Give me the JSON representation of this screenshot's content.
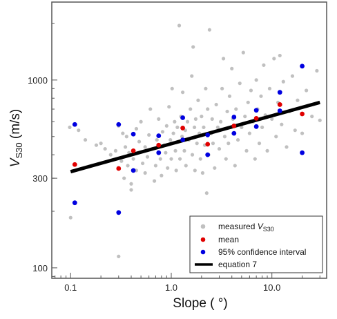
{
  "chart_data": {
    "type": "scatter",
    "xlabel": "Slope ( °)",
    "ylabel": "V",
    "ylabel_subscript": "S30",
    "ylabel_unit": " (m/s)",
    "x_scale": "log",
    "y_scale": "log",
    "xlim": [
      0.065,
      35
    ],
    "ylim": [
      88,
      2600
    ],
    "x_ticks": [
      0.1,
      1.0,
      10.0
    ],
    "x_tick_labels": [
      "0.1",
      "1.0",
      "10.0"
    ],
    "y_ticks": [
      100,
      300,
      1000
    ],
    "y_tick_labels": [
      "100",
      "300",
      "1000"
    ],
    "grid": false,
    "legend_position": "bottom-right",
    "legend": [
      {
        "label": "measured ",
        "label_italic": "V",
        "label_subscript": "S30",
        "marker": "dot",
        "color": "#c0c0c0"
      },
      {
        "label": "mean",
        "marker": "dot",
        "color": "#e00000"
      },
      {
        "label": "95% confidence interval",
        "marker": "dot",
        "color": "#0000e0"
      },
      {
        "label": "equation 7",
        "marker": "line",
        "color": "#000000"
      }
    ],
    "colors": {
      "measured": "#c0c0c0",
      "mean": "#e00000",
      "ci": "#0000e0",
      "equation": "#000000"
    },
    "series": [
      {
        "name": "mean",
        "points": [
          [
            0.11,
            355
          ],
          [
            0.3,
            338
          ],
          [
            0.42,
            420
          ],
          [
            0.75,
            450
          ],
          [
            1.3,
            555
          ],
          [
            2.3,
            455
          ],
          [
            4.2,
            570
          ],
          [
            7.0,
            625
          ],
          [
            12,
            740
          ],
          [
            20,
            660
          ]
        ]
      },
      {
        "name": "95% confidence interval",
        "points": [
          [
            0.11,
            580
          ],
          [
            0.11,
            222
          ],
          [
            0.3,
            580
          ],
          [
            0.3,
            197
          ],
          [
            0.42,
            515
          ],
          [
            0.42,
            330
          ],
          [
            0.75,
            505
          ],
          [
            0.75,
            410
          ],
          [
            1.3,
            630
          ],
          [
            1.3,
            480
          ],
          [
            2.3,
            510
          ],
          [
            2.3,
            400
          ],
          [
            4.2,
            635
          ],
          [
            4.2,
            520
          ],
          [
            7.0,
            690
          ],
          [
            7.0,
            565
          ],
          [
            12,
            860
          ],
          [
            12,
            685
          ],
          [
            20,
            1185
          ],
          [
            20,
            410
          ]
        ]
      },
      {
        "name": "equation 7",
        "line": [
          [
            0.1,
            325
          ],
          [
            30,
            760
          ]
        ]
      },
      {
        "name": "measured",
        "points": [
          [
            0.098,
            560
          ],
          [
            0.1,
            185
          ],
          [
            0.12,
            540
          ],
          [
            0.14,
            480
          ],
          [
            0.18,
            450
          ],
          [
            0.2,
            460
          ],
          [
            0.22,
            430
          ],
          [
            0.25,
            400
          ],
          [
            0.28,
            420
          ],
          [
            0.3,
            570
          ],
          [
            0.3,
            115
          ],
          [
            0.32,
            370
          ],
          [
            0.33,
            520
          ],
          [
            0.34,
            300
          ],
          [
            0.35,
            440
          ],
          [
            0.36,
            500
          ],
          [
            0.37,
            350
          ],
          [
            0.38,
            410
          ],
          [
            0.4,
            260
          ],
          [
            0.4,
            280
          ],
          [
            0.42,
            380
          ],
          [
            0.45,
            330
          ],
          [
            0.45,
            550
          ],
          [
            0.48,
            470
          ],
          [
            0.5,
            600
          ],
          [
            0.52,
            360
          ],
          [
            0.55,
            440
          ],
          [
            0.55,
            320
          ],
          [
            0.58,
            390
          ],
          [
            0.6,
            510
          ],
          [
            0.62,
            700
          ],
          [
            0.65,
            430
          ],
          [
            0.68,
            290
          ],
          [
            0.7,
            350
          ],
          [
            0.72,
            480
          ],
          [
            0.75,
            620
          ],
          [
            0.78,
            380
          ],
          [
            0.8,
            310
          ],
          [
            0.82,
            530
          ],
          [
            0.85,
            450
          ],
          [
            0.88,
            410
          ],
          [
            0.9,
            570
          ],
          [
            0.92,
            340
          ],
          [
            0.95,
            720
          ],
          [
            0.98,
            480
          ],
          [
            1.0,
            380
          ],
          [
            1.02,
            900
          ],
          [
            1.05,
            520
          ],
          [
            1.08,
            600
          ],
          [
            1.1,
            420
          ],
          [
            1.12,
            330
          ],
          [
            1.15,
            560
          ],
          [
            1.18,
            470
          ],
          [
            1.2,
            1950
          ],
          [
            1.22,
            380
          ],
          [
            1.25,
            640
          ],
          [
            1.28,
            500
          ],
          [
            1.3,
            860
          ],
          [
            1.35,
            420
          ],
          [
            1.38,
            540
          ],
          [
            1.4,
            350
          ],
          [
            1.45,
            600
          ],
          [
            1.5,
            480
          ],
          [
            1.55,
            700
          ],
          [
            1.6,
            1050
          ],
          [
            1.62,
            400
          ],
          [
            1.65,
            1500
          ],
          [
            1.7,
            560
          ],
          [
            1.72,
            330
          ],
          [
            1.75,
            620
          ],
          [
            1.8,
            460
          ],
          [
            1.85,
            780
          ],
          [
            1.9,
            520
          ],
          [
            1.95,
            380
          ],
          [
            2.0,
            640
          ],
          [
            2.05,
            320
          ],
          [
            2.1,
            560
          ],
          [
            2.15,
            450
          ],
          [
            2.2,
            900
          ],
          [
            2.25,
            250
          ],
          [
            2.3,
            700
          ],
          [
            2.35,
            400
          ],
          [
            2.4,
            1850
          ],
          [
            2.5,
            520
          ],
          [
            2.55,
            620
          ],
          [
            2.6,
            460
          ],
          [
            2.7,
            340
          ],
          [
            2.8,
            740
          ],
          [
            2.9,
            560
          ],
          [
            3.0,
            430
          ],
          [
            3.1,
            600
          ],
          [
            3.2,
            900
          ],
          [
            3.3,
            1300
          ],
          [
            3.4,
            500
          ],
          [
            3.5,
            380
          ],
          [
            3.6,
            680
          ],
          [
            3.7,
            460
          ],
          [
            3.8,
            820
          ],
          [
            3.9,
            560
          ],
          [
            4.0,
            1150
          ],
          [
            4.1,
            620
          ],
          [
            4.3,
            350
          ],
          [
            4.4,
            700
          ],
          [
            4.6,
            480
          ],
          [
            4.8,
            960
          ],
          [
            5.0,
            560
          ],
          [
            5.2,
            1400
          ],
          [
            5.4,
            640
          ],
          [
            5.6,
            420
          ],
          [
            5.8,
            760
          ],
          [
            6.0,
            520
          ],
          [
            6.2,
            880
          ],
          [
            6.5,
            600
          ],
          [
            6.8,
            380
          ],
          [
            7.0,
            1000
          ],
          [
            7.2,
            700
          ],
          [
            7.5,
            460
          ],
          [
            7.8,
            820
          ],
          [
            8.0,
            560
          ],
          [
            8.3,
            1200
          ],
          [
            8.6,
            650
          ],
          [
            9.0,
            420
          ],
          [
            9.5,
            900
          ],
          [
            10,
            620
          ],
          [
            10.5,
            1300
          ],
          [
            11,
            500
          ],
          [
            11.5,
            760
          ],
          [
            12,
            1350
          ],
          [
            12.5,
            580
          ],
          [
            13,
            980
          ],
          [
            14,
            440
          ],
          [
            15,
            680
          ],
          [
            16,
            1050
          ],
          [
            17,
            540
          ],
          [
            18,
            780
          ],
          [
            20,
            520
          ],
          [
            22,
            880
          ],
          [
            25,
            640
          ],
          [
            28,
            1120
          ],
          [
            30,
            610
          ]
        ]
      }
    ]
  }
}
